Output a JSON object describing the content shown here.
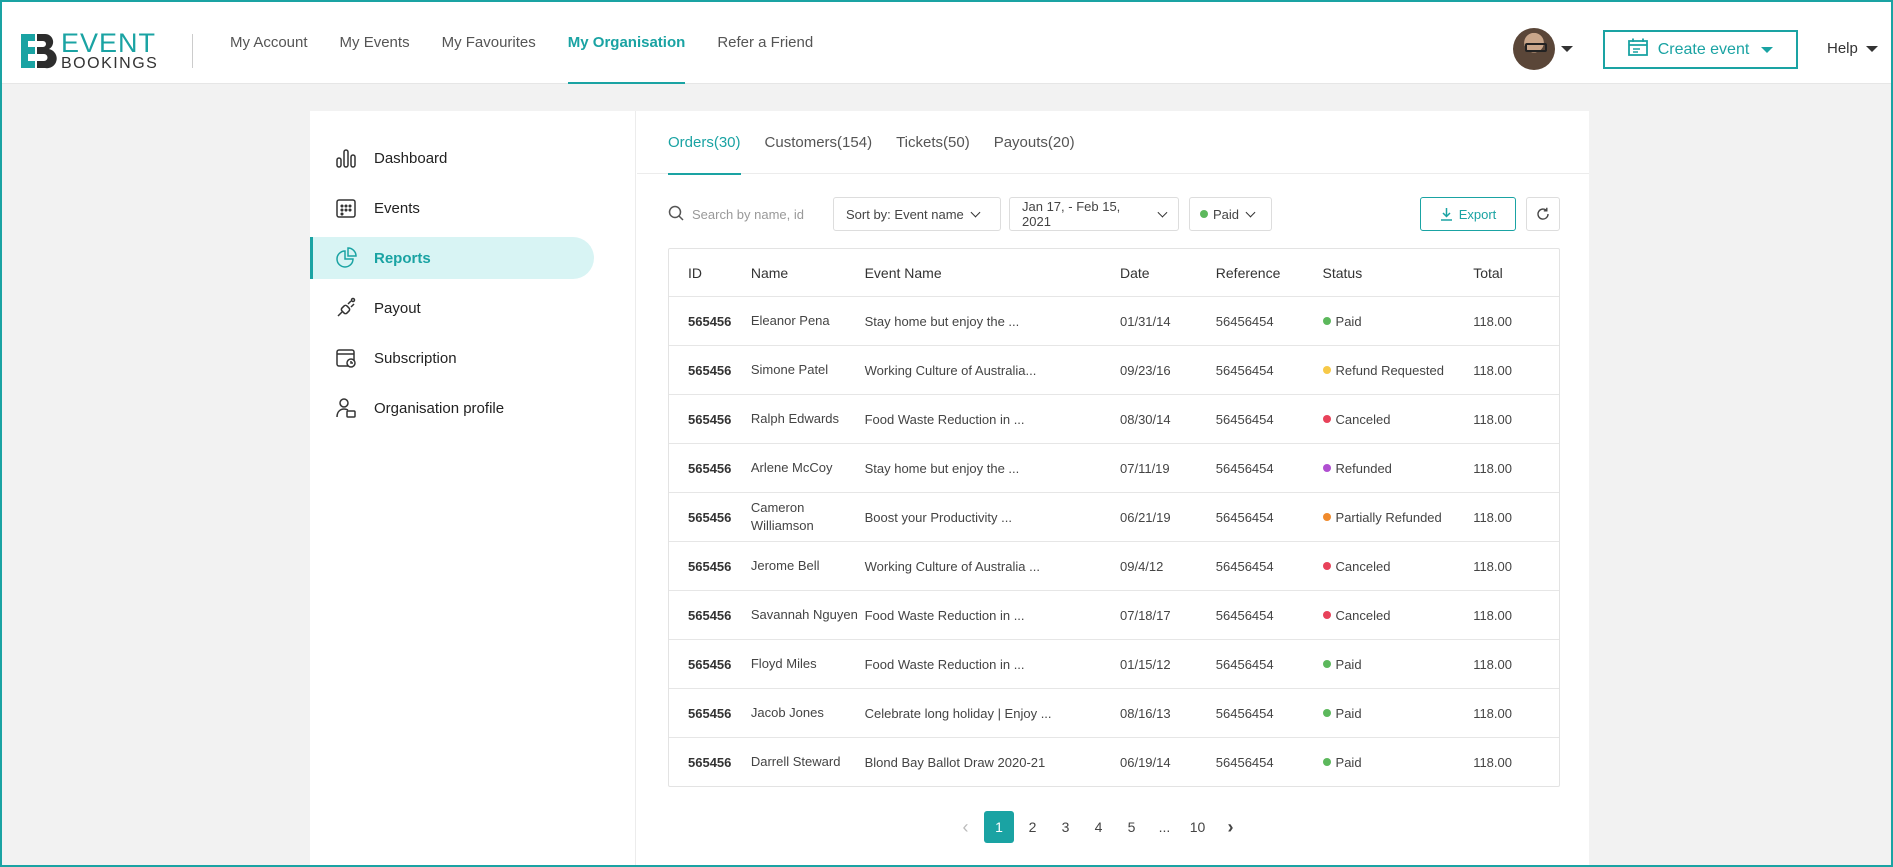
{
  "brand": {
    "line1": "EVENT",
    "line2": "BOOKINGS"
  },
  "nav": [
    {
      "label": "My Account",
      "active": false
    },
    {
      "label": "My Events",
      "active": false
    },
    {
      "label": "My Favourites",
      "active": false
    },
    {
      "label": "My Organisation",
      "active": true
    },
    {
      "label": "Refer a Friend",
      "active": false
    }
  ],
  "header": {
    "create_label": "Create event",
    "help_label": "Help"
  },
  "sidebar": [
    {
      "label": "Dashboard",
      "icon": "bar-chart-icon",
      "active": false
    },
    {
      "label": "Events",
      "icon": "calendar-grid-icon",
      "active": false
    },
    {
      "label": "Reports",
      "icon": "pie-chart-icon",
      "active": true
    },
    {
      "label": "Payout",
      "icon": "plug-icon",
      "active": false
    },
    {
      "label": "Subscription",
      "icon": "subscription-icon",
      "active": false
    },
    {
      "label": "Organisation profile",
      "icon": "profile-icon",
      "active": false
    }
  ],
  "tabs": [
    {
      "label": "Orders(30)",
      "active": true
    },
    {
      "label": "Customers(154)",
      "active": false
    },
    {
      "label": "Tickets(50)",
      "active": false
    },
    {
      "label": "Payouts(20)",
      "active": false
    }
  ],
  "toolbar": {
    "search_placeholder": "Search by name, id",
    "sort_label": "Sort by: Event name",
    "date_range": "Jan 17, - Feb 15, 2021",
    "status_filter": "Paid",
    "export_label": "Export"
  },
  "colors": {
    "accent": "#1aa3a3",
    "Paid": "#5cb85c",
    "Refund Requested": "#f7c948",
    "Canceled": "#e8425a",
    "Refunded": "#b04fd1",
    "Partially Refunded": "#f08a2c"
  },
  "table": {
    "columns": [
      "ID",
      "Name",
      "Event Name",
      "Date",
      "Reference",
      "Status",
      "Total"
    ],
    "rows": [
      [
        "565456",
        "Eleanor Pena",
        "Stay home but enjoy the ...",
        "01/31/14",
        "56456454",
        "Paid",
        "118.00"
      ],
      [
        "565456",
        "Simone Patel",
        "Working Culture of Australia...",
        "09/23/16",
        "56456454",
        "Refund Requested",
        "118.00"
      ],
      [
        "565456",
        "Ralph Edwards",
        "Food Waste Reduction in ...",
        "08/30/14",
        "56456454",
        "Canceled",
        "118.00"
      ],
      [
        "565456",
        "Arlene McCoy",
        "Stay home but enjoy the ...",
        "07/11/19",
        "56456454",
        "Refunded",
        "118.00"
      ],
      [
        "565456",
        "Cameron Williamson",
        "Boost your Productivity ...",
        "06/21/19",
        "56456454",
        "Partially Refunded",
        "118.00"
      ],
      [
        "565456",
        "Jerome Bell",
        "Working Culture of Australia ...",
        "09/4/12",
        "56456454",
        "Canceled",
        "118.00"
      ],
      [
        "565456",
        "Savannah Nguyen",
        "Food Waste Reduction in ...",
        "07/18/17",
        "56456454",
        "Canceled",
        "118.00"
      ],
      [
        "565456",
        "Floyd Miles",
        "Food Waste Reduction in ...",
        "01/15/12",
        "56456454",
        "Paid",
        "118.00"
      ],
      [
        "565456",
        "Jacob Jones",
        "Celebrate long holiday | Enjoy ...",
        "08/16/13",
        "56456454",
        "Paid",
        "118.00"
      ],
      [
        "565456",
        "Darrell Steward",
        "Blond Bay Ballot Draw 2020-21",
        "06/19/14",
        "56456454",
        "Paid",
        "118.00"
      ]
    ]
  },
  "pagination": {
    "pages": [
      "1",
      "2",
      "3",
      "4",
      "5",
      "...",
      "10"
    ],
    "current": "1"
  }
}
